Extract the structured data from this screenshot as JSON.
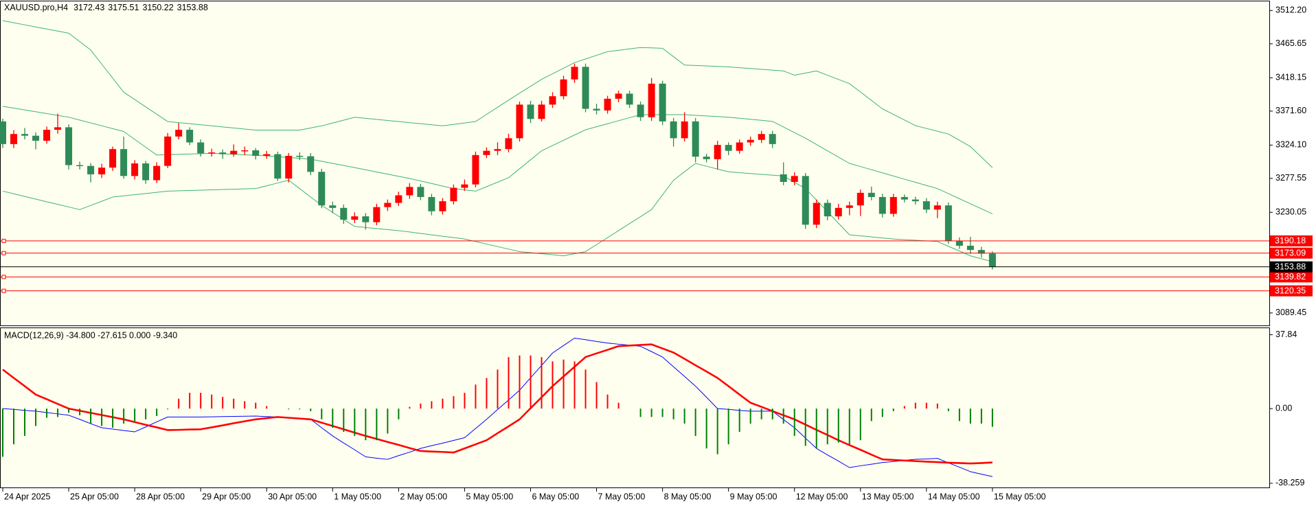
{
  "chart_data": [
    {
      "type": "candlestick",
      "title": "XAUUSD.pro,H4",
      "categories": [
        "24 Apr 2025",
        null,
        null,
        null,
        null,
        null,
        "25 Apr 05:00",
        null,
        null,
        null,
        null,
        null,
        "28 Apr 05:00",
        null,
        null,
        null,
        null,
        null,
        "29 Apr 05:00",
        null,
        null,
        null,
        null,
        null,
        "30 Apr 05:00",
        null,
        null,
        null,
        null,
        null,
        "1 May 05:00",
        null,
        null,
        null,
        null,
        null,
        "2 May 05:00",
        null,
        null,
        null,
        null,
        null,
        "5 May 05:00",
        null,
        null,
        null,
        null,
        null,
        "6 May 05:00",
        null,
        null,
        null,
        null,
        null,
        "7 May 05:00",
        null,
        null,
        null,
        null,
        null,
        "8 May 05:00",
        null,
        null,
        null,
        null,
        null,
        "9 May 05:00",
        null,
        null,
        null,
        null,
        null,
        "12 May 05:00",
        null,
        null,
        null,
        null,
        null,
        "13 May 05:00",
        null,
        null,
        null,
        null,
        null,
        "14 May 05:00",
        null,
        null,
        null,
        null,
        null,
        "15 May 05:00"
      ],
      "open": [
        3357.2,
        3325.5,
        3339.6,
        3337.2,
        3330.2,
        3345.5,
        3349.0,
        3296.1,
        3295.0,
        3283.2,
        3292.6,
        3318.5,
        3280.9,
        3298.5,
        3275.0,
        3295.0,
        3336.1,
        3345.5,
        3327.8,
        3312.6,
        3313.8,
        3311.4,
        3316.1,
        3316.8,
        3309.1,
        3311.4,
        3277.3,
        3309.1,
        3308.5,
        3286.7,
        3239.8,
        3236.3,
        3219.8,
        3224.5,
        3216.3,
        3237.4,
        3243.3,
        3253.9,
        3265.6,
        3251.5,
        3231.6,
        3245.6,
        3264.4,
        3269.1,
        3310.2,
        3316.1,
        3318.5,
        3333.7,
        3380.7,
        3360.7,
        3380.7,
        3392.4,
        3415.9,
        3433.5,
        3374.8,
        3372.5,
        3388.9,
        3396.0,
        3380.7,
        3363.1,
        3410.0,
        3357.2,
        3333.7,
        3357.2,
        3307.9,
        3304.4,
        3324.3,
        3316.1,
        3327.8,
        3331.4,
        3339.6,
        3283.2,
        3272.6,
        3280.9,
        3212.8,
        3243.3,
        3224.5,
        3236.3,
        3239.8,
        3257.4,
        3251.5,
        3228.0,
        3251.5,
        3248.0,
        3245.6,
        3233.9,
        3239.8,
        3190.5,
        3183.4,
        3177.5,
        3172.43
      ],
      "high": [
        3361,
        3345,
        3348,
        3342,
        3350,
        3368,
        3353,
        3301,
        3299,
        3298,
        3322,
        3336,
        3303,
        3302,
        3300,
        3341,
        3355,
        3349,
        3332,
        3319,
        3318,
        3325,
        3322,
        3320,
        3316,
        3315,
        3313,
        3314,
        3313,
        3291,
        3245,
        3241,
        3230,
        3229,
        3242,
        3248,
        3259,
        3271,
        3270,
        3256,
        3250,
        3269,
        3276,
        3315,
        3321,
        3328,
        3340,
        3385,
        3386,
        3386,
        3398,
        3421,
        3438,
        3438,
        3382,
        3393,
        3400,
        3400,
        3385,
        3418,
        3414,
        3362,
        3370,
        3362,
        3312,
        3330,
        3328,
        3332,
        3336,
        3344,
        3344,
        3300,
        3286,
        3285,
        3248,
        3248,
        3242,
        3245,
        3262,
        3266,
        3256,
        3256,
        3255,
        3252,
        3250,
        3245,
        3244,
        3195,
        3196,
        3182,
        3175.51
      ],
      "low": [
        3320,
        3320,
        3332,
        3318,
        3326,
        3340,
        3290,
        3290,
        3272,
        3278,
        3288,
        3277,
        3276,
        3270,
        3271,
        3292,
        3332,
        3324,
        3308,
        3308,
        3305,
        3308,
        3310,
        3304,
        3305,
        3274,
        3272,
        3303,
        3282,
        3236,
        3229,
        3214,
        3215,
        3206,
        3212,
        3232,
        3239,
        3249,
        3247,
        3226,
        3227,
        3241,
        3260,
        3265,
        3306,
        3310,
        3314,
        3329,
        3355,
        3357,
        3376,
        3388,
        3411,
        3370,
        3367,
        3368,
        3384,
        3376,
        3358,
        3358,
        3352,
        3322,
        3329,
        3300,
        3300,
        3290,
        3310,
        3312,
        3323,
        3327,
        3320,
        3268,
        3268,
        3207,
        3208,
        3219,
        3220,
        3226,
        3225,
        3247,
        3223,
        3224,
        3244,
        3241,
        3229,
        3222,
        3186,
        3179,
        3172,
        3167,
        3150.22
      ],
      "close": [
        3325.5,
        3339.6,
        3337.2,
        3330.2,
        3345.5,
        3349.0,
        3296.1,
        3295.0,
        3283.2,
        3292.6,
        3318.5,
        3280.9,
        3298.5,
        3275.0,
        3295.0,
        3336.1,
        3345.5,
        3327.8,
        3312.6,
        3313.8,
        3311.4,
        3316.1,
        3316.8,
        3309.1,
        3311.4,
        3277.3,
        3309.1,
        3308.5,
        3286.7,
        3239.8,
        3236.3,
        3219.8,
        3224.5,
        3216.3,
        3237.4,
        3243.3,
        3253.9,
        3265.6,
        3251.5,
        3231.6,
        3245.6,
        3264.4,
        3269.1,
        3310.2,
        3316.1,
        3318.5,
        3333.7,
        3380.7,
        3360.7,
        3380.7,
        3392.4,
        3415.9,
        3433.5,
        3374.8,
        3372.5,
        3388.9,
        3396.0,
        3380.7,
        3363.1,
        3410.0,
        3357.2,
        3333.7,
        3357.2,
        3307.9,
        3304.4,
        3324.3,
        3316.1,
        3327.8,
        3331.4,
        3339.6,
        3325.5,
        3272.6,
        3280.9,
        3212.8,
        3243.3,
        3224.5,
        3236.3,
        3239.8,
        3257.4,
        3251.5,
        3228.0,
        3251.5,
        3248.0,
        3245.6,
        3233.9,
        3239.8,
        3190.5,
        3183.4,
        3177.5,
        3172.43,
        3153.88
      ],
      "up_color": "#ff0000",
      "down_color": "#2e8b57",
      "lines": [
        {
          "color": "#3cb371",
          "values": [
            3498,
            3495.1,
            3492.2,
            3489.3,
            3486.4,
            3483.5,
            3480.5,
            3468.7,
            3457,
            3437.3,
            3417.7,
            3398,
            3387.8,
            3377.5,
            3367.3,
            3357,
            3355.5,
            3354,
            3352.5,
            3351,
            3349.5,
            3348,
            3346.5,
            3345,
            3345,
            3345,
            3345,
            3345,
            3348,
            3351,
            3355,
            3359,
            3363,
            3361.5,
            3360,
            3358.5,
            3357,
            3355.5,
            3354,
            3352.5,
            3351,
            3353,
            3355,
            3357,
            3367,
            3377,
            3387,
            3396.7,
            3406.3,
            3416,
            3423.8,
            3431.6,
            3439.4,
            3444.5,
            3449.6,
            3454.7,
            3456.6,
            3458.6,
            3460.5,
            3460,
            3459.4,
            3447.7,
            3436,
            3435.4,
            3434.8,
            3434.1,
            3433.5,
            3432.3,
            3431.2,
            3430,
            3428.9,
            3427.7,
            3421.8,
            3424.8,
            3427.7,
            3421.8,
            3415.9,
            3410,
            3398.3,
            3386.5,
            3374.8,
            3366.9,
            3359.1,
            3351.3,
            3347.4,
            3343.5,
            3339.6,
            3330.8,
            3322,
            3307.3,
            3292.6
          ]
        },
        {
          "color": "#3cb371",
          "values": [
            3378.3,
            3375.8,
            3373.2,
            3370.7,
            3368.2,
            3365.6,
            3363.1,
            3359.1,
            3355.1,
            3351.1,
            3347.1,
            3343.1,
            3332.1,
            3321.2,
            3310.2,
            3310.7,
            3311.2,
            3311.6,
            3312.1,
            3312.6,
            3311.9,
            3311.2,
            3310.5,
            3309.8,
            3309.1,
            3307.9,
            3306.8,
            3305.6,
            3304.4,
            3301.5,
            3298.5,
            3295.6,
            3292.6,
            3289.6,
            3286.5,
            3283.5,
            3280.4,
            3277.4,
            3273.9,
            3270.4,
            3266.8,
            3263.3,
            3261.5,
            3259.7,
            3266,
            3272.2,
            3278.5,
            3291,
            3303.6,
            3316.1,
            3323.5,
            3330.8,
            3338.2,
            3345.5,
            3349.7,
            3353.9,
            3358.2,
            3362.4,
            3366.6,
            3366.6,
            3366.6,
            3366.6,
            3366.6,
            3365.7,
            3364.9,
            3364,
            3363.1,
            3361.6,
            3360.2,
            3358.7,
            3357.2,
            3349.4,
            3341.5,
            3333.7,
            3324.9,
            3316.1,
            3307.3,
            3298.5,
            3294.1,
            3289.7,
            3285.3,
            3280.9,
            3276.5,
            3272.1,
            3267.7,
            3263.3,
            3256.2,
            3249.2,
            3242.1,
            3235.1,
            3228
          ]
        },
        {
          "color": "#3cb371",
          "values": [
            3259.7,
            3256,
            3252.3,
            3248.6,
            3244.9,
            3241.3,
            3237.6,
            3233.9,
            3239.8,
            3245.6,
            3251.5,
            3253.1,
            3254.8,
            3256.4,
            3258.1,
            3259.7,
            3260.2,
            3260.6,
            3261.1,
            3261.5,
            3262,
            3262.4,
            3262.9,
            3263.3,
            3267.2,
            3271.1,
            3275,
            3263.3,
            3251.5,
            3239.8,
            3230,
            3220.2,
            3210.4,
            3208.9,
            3207.5,
            3206,
            3204.5,
            3202.6,
            3200.6,
            3198.7,
            3196.7,
            3194.8,
            3192.8,
            3189.3,
            3185.8,
            3182.2,
            3178.7,
            3175.2,
            3173.7,
            3172.3,
            3170.8,
            3169.3,
            3172.3,
            3175.2,
            3185,
            3194.7,
            3204.5,
            3214.3,
            3224.1,
            3233.9,
            3254.5,
            3275,
            3286.8,
            3298.5,
            3294.6,
            3290.6,
            3286.7,
            3285.5,
            3284.4,
            3283.2,
            3282.1,
            3280.9,
            3272.1,
            3263.3,
            3247.2,
            3231.1,
            3214.9,
            3198.7,
            3197.2,
            3195.8,
            3194.3,
            3192.8,
            3191.9,
            3191.1,
            3190.2,
            3189.3,
            3182.6,
            3176,
            3169.3,
            3165.2,
            3161
          ]
        }
      ],
      "levels": [
        3190.18,
        3173.09,
        3139.82,
        3120.35
      ],
      "level_color": "#ff0000",
      "bid_color": "#000000",
      "ylim": [
        3072,
        3525
      ],
      "yticks": [
        {
          "value": 3512.2,
          "label": "3512.20"
        },
        3465.65,
        3418.15,
        {
          "value": 3371.6,
          "label": "3371.60"
        },
        {
          "value": 3324.1,
          "label": "3324.10"
        },
        3277.55,
        3230.05,
        3089.45
      ]
    },
    {
      "type": "macd",
      "title": "MACD(12,26,9) -34.800 -27.615 0.000 -9.340",
      "histogram": [
        -24.7,
        -18.3,
        -14.0,
        -8.9,
        -4.7,
        -4.3,
        -2.1,
        -3.4,
        -7.7,
        -8.9,
        -9.8,
        -7.7,
        -6.4,
        -5.5,
        -3.8,
        -0.4,
        5.1,
        8.1,
        8.1,
        7.2,
        6.0,
        5.1,
        3.8,
        3.0,
        1.3,
        0,
        -0.4,
        -0.4,
        -1.3,
        -5.5,
        -9.8,
        -11.9,
        -14.0,
        -16.2,
        -16.2,
        -12.8,
        -5.5,
        0.9,
        2.6,
        3.8,
        5.1,
        6.4,
        8.1,
        12.3,
        15.7,
        20.0,
        26.4,
        27.2,
        27.2,
        26.4,
        24.2,
        25.1,
        24.2,
        20.0,
        13.6,
        7.2,
        3.0,
        0,
        -4.3,
        -4.3,
        -4.3,
        -5.5,
        -7.7,
        -14.0,
        -20.4,
        -23.4,
        -18.3,
        -11.9,
        -7.7,
        -5.5,
        -5.5,
        -7.7,
        -14.0,
        -19.1,
        -20.4,
        -18.3,
        -17.4,
        -18.3,
        -16.2,
        -6.4,
        -4.3,
        -1.3,
        1.3,
        3.0,
        3.0,
        2.6,
        -1.3,
        -6.4,
        -7.7,
        -7.7,
        -9.34
      ],
      "up_color": "#ff0000",
      "down_color": "#008000",
      "lines": [
        {
          "color": "#0000ff",
          "width": 1,
          "values": [
            0,
            -0.4,
            -0.9,
            -1.3,
            -2.0,
            -2.7,
            -3.4,
            -5.5,
            -7.7,
            -9.8,
            -10.5,
            -11.2,
            -11.9,
            -9.4,
            -6.8,
            -4.3,
            -4.3,
            -4.3,
            -4.3,
            -4.2,
            -4.1,
            -4.0,
            -3.9,
            -3.8,
            -4.1,
            -4.3,
            -4.7,
            -5.1,
            -5.5,
            -9.8,
            -14.0,
            -17.6,
            -21.1,
            -24.7,
            -25.4,
            -26.0,
            -24.1,
            -22.3,
            -20.4,
            -19.0,
            -17.7,
            -16.3,
            -14.9,
            -10.2,
            -5.5,
            -0.5,
            4.4,
            9.4,
            15.8,
            22.1,
            28.5,
            32.3,
            36.1,
            35.3,
            34.4,
            33.6,
            33.0,
            32.5,
            31.9,
            29.2,
            26.4,
            21.4,
            16.5,
            11.5,
            5.8,
            0,
            -0.4,
            -0.9,
            -1.3,
            -1.3,
            -1.3,
            -5.6,
            -9.8,
            -15.1,
            -20.4,
            -23.7,
            -26.9,
            -30.2,
            -29.3,
            -28.5,
            -27.6,
            -27.1,
            -26.5,
            -26.0,
            -25.8,
            -25.5,
            -27.8,
            -30.0,
            -32.3,
            -33.6,
            -34.8
          ]
        },
        {
          "color": "#ff0000",
          "width": 2.6,
          "values": [
            20.0,
            15.7,
            11.5,
            7.2,
            4.8,
            2.4,
            0,
            -1.1,
            -2.2,
            -3.3,
            -4.4,
            -5.5,
            -6.9,
            -8.3,
            -9.6,
            -11.0,
            -10.9,
            -10.7,
            -10.6,
            -9.6,
            -8.6,
            -7.5,
            -6.5,
            -5.5,
            -4.9,
            -4.3,
            -4.7,
            -5.1,
            -5.5,
            -7.2,
            -8.9,
            -10.6,
            -12.3,
            -14.0,
            -15.5,
            -17.1,
            -18.6,
            -20.2,
            -21.7,
            -22.0,
            -22.2,
            -22.5,
            -20.4,
            -18.3,
            -16.2,
            -12.6,
            -9.1,
            -5.5,
            0.2,
            5.8,
            11.5,
            16.5,
            21.4,
            26.4,
            28.3,
            30.1,
            32.0,
            32.3,
            32.6,
            32.9,
            30.8,
            28.7,
            25.5,
            22.2,
            19.0,
            15.7,
            11.5,
            7.2,
            3.0,
            0.9,
            -1.3,
            -3.4,
            -5.5,
            -8.2,
            -10.9,
            -13.5,
            -16.2,
            -18.7,
            -21.1,
            -23.6,
            -26.0,
            -26.3,
            -26.6,
            -26.9,
            -27.2,
            -27.4,
            -27.7,
            -27.9,
            -28.1,
            -27.9,
            -27.6
          ]
        }
      ],
      "ylim": [
        -40.4,
        41.2
      ],
      "yticks": [
        37.84,
        {
          "value": 0,
          "label": "0.00"
        },
        -38.259
      ]
    }
  ]
}
